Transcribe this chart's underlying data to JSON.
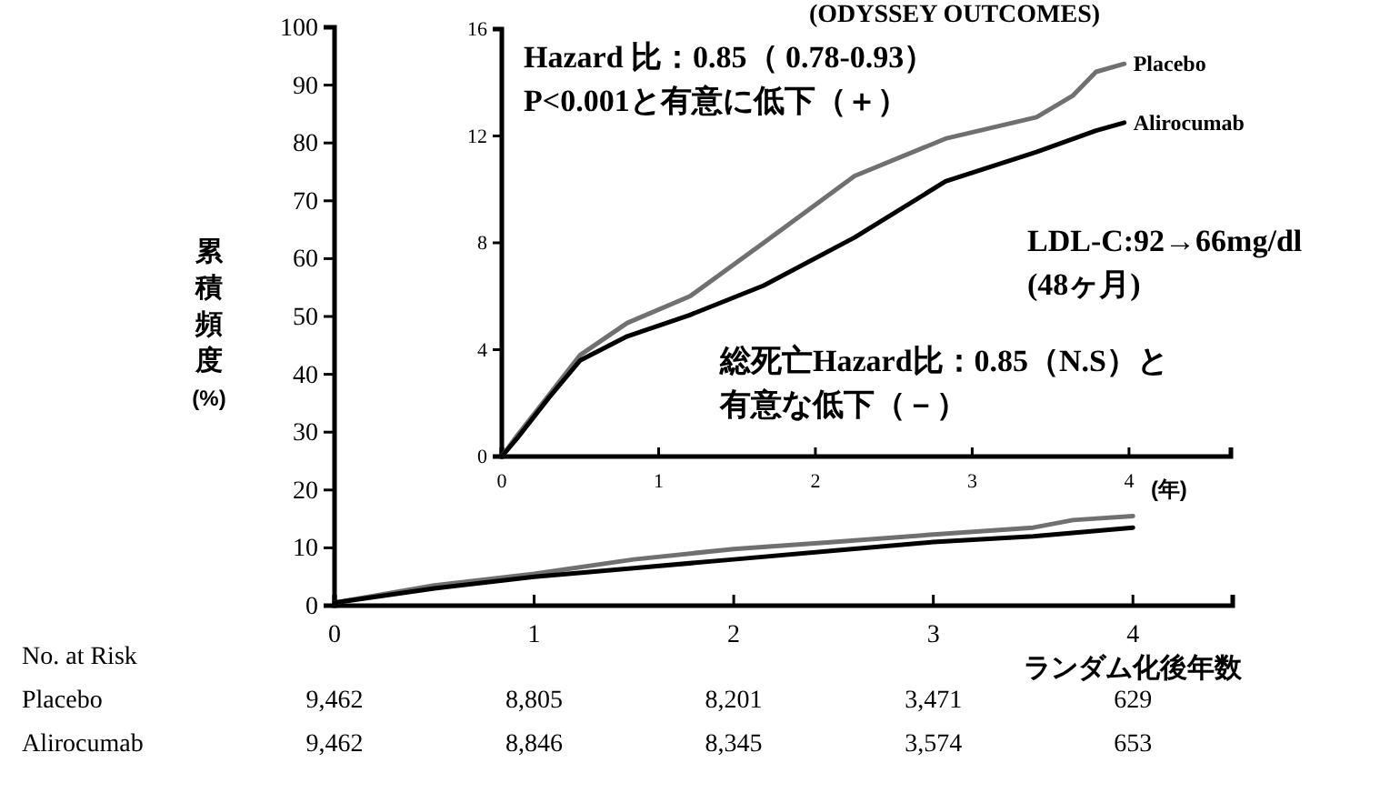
{
  "chart_data": [
    {
      "type": "line",
      "title": "(ODYSSEY OUTCOMES)",
      "xlabel": "ランダム化後年数",
      "ylabel": "累積頻度 (%)",
      "xlim": [
        0,
        4.5
      ],
      "ylim": [
        0,
        100
      ],
      "xticks": [
        0,
        1,
        2,
        3,
        4
      ],
      "yticks": [
        0,
        10,
        20,
        30,
        40,
        50,
        60,
        70,
        80,
        90,
        100
      ],
      "series": [
        {
          "color": "#707070",
          "x": [
            0,
            0.5,
            1,
            1.5,
            2,
            2.5,
            3,
            3.3,
            3.5,
            3.7,
            4
          ],
          "values": [
            0.5,
            3.5,
            5.5,
            8,
            9.8,
            11,
            12.3,
            13,
            13.5,
            14.8,
            15.5
          ]
        },
        {
          "color": "#000000",
          "x": [
            0,
            0.5,
            1,
            1.5,
            2,
            2.5,
            3,
            3.5,
            4
          ],
          "values": [
            0.5,
            3,
            5,
            6.5,
            8,
            9.5,
            11,
            12,
            13.5
          ]
        }
      ],
      "annotations": [
        "No. at Risk",
        "Placebo",
        "9,462",
        "8,805",
        "8,201",
        "3,471",
        "629",
        "Alirocumab",
        "9,462",
        "8,846",
        "8,345",
        "3,574",
        "653"
      ]
    },
    {
      "type": "line",
      "xlabel": "(年)",
      "xlim": [
        0,
        4.65
      ],
      "ylim": [
        0,
        16
      ],
      "xticks": [
        0,
        1,
        2,
        3,
        4
      ],
      "yticks": [
        0,
        4,
        8,
        12,
        16
      ],
      "series": [
        {
          "name": "Placebo",
          "color": "#707070",
          "x": [
            0,
            0.1,
            0.3,
            0.5,
            0.8,
            1.2,
            1.67,
            2.25,
            2.83,
            3.41,
            3.64,
            3.79,
            3.97
          ],
          "values": [
            0,
            0.8,
            2.3,
            3.8,
            5.0,
            6.0,
            8.0,
            10.5,
            11.9,
            12.7,
            13.5,
            14.4,
            14.7
          ]
        },
        {
          "name": "Alirocumab",
          "color": "#000000",
          "x": [
            0,
            0.1,
            0.3,
            0.5,
            0.8,
            1.2,
            1.67,
            2.25,
            2.83,
            3.41,
            3.79,
            3.97
          ],
          "values": [
            0,
            0.7,
            2.2,
            3.6,
            4.5,
            5.3,
            6.4,
            8.2,
            10.3,
            11.4,
            12.2,
            12.5
          ]
        }
      ],
      "annotations": [
        "Hazard 比：0.85（ 0.78-0.93）",
        "P<0.001と有意に低下（＋）",
        "LDL-C:92→66mg/dl",
        "(48ヶ月)",
        "総死亡Hazard比：0.85（N.S）と",
        "有意な低下（－）"
      ]
    }
  ]
}
